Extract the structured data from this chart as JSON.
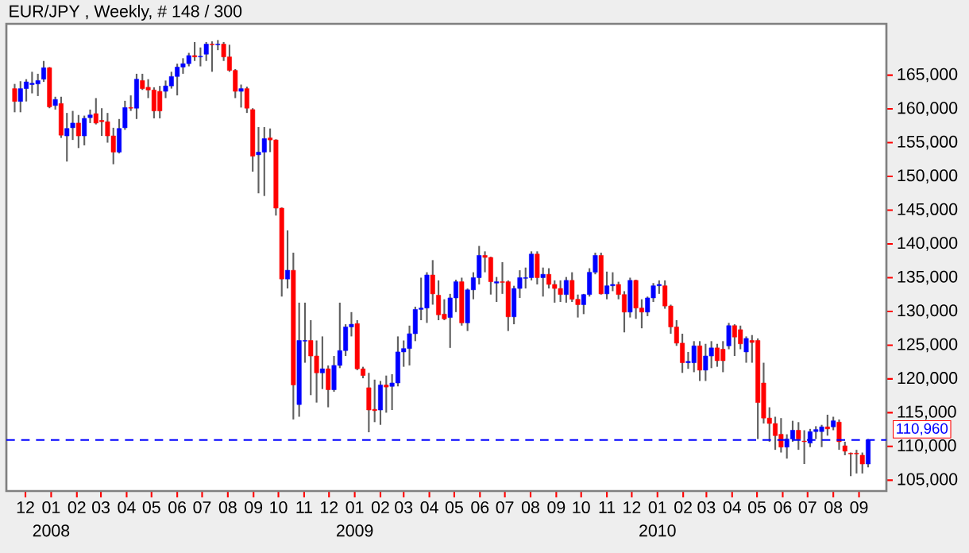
{
  "chart_data": {
    "type": "candlestick",
    "title": "EUR/JPY , Weekly, # 148 / 300",
    "colors": [
      "#ff0000",
      "#0000ff",
      "#0000ff",
      "#0000ff",
      "#0000ff",
      "#0000ff",
      "#ff0000",
      "#0000ff",
      "#ff0000",
      "#0000ff",
      "#0000ff",
      "#ff0000",
      "#0000ff",
      "#0000ff",
      "#ff0000",
      "#ff0000",
      "#ff0000",
      "#ff0000",
      "#0000ff",
      "#0000ff",
      "#ff0000",
      "#0000ff",
      "#ff0000",
      "#ff0000",
      "#ff0000",
      "#ff0000",
      "#0000ff",
      "#0000ff",
      "#0000ff",
      "#0000ff",
      "#0000ff",
      "#ff0000",
      "#0000ff",
      "#0000ff",
      "#ff0000",
      "#0000ff",
      "#ff0000",
      "#ff0000",
      "#ff0000",
      "#0000ff",
      "#ff0000",
      "#ff0000",
      "#0000ff",
      "#0000ff",
      "#ff0000",
      "#ff0000",
      "#ff0000",
      "#0000ff",
      "#ff0000",
      "#0000ff",
      "#0000ff",
      "#ff0000",
      "#ff0000",
      "#0000ff",
      "#ff0000",
      "#0000ff",
      "#0000ff",
      "#0000ff",
      "#0000ff",
      "#ff0000",
      "#ff0000",
      "#ff0000",
      "#ff0000",
      "#0000ff",
      "#ff0000",
      "#0000ff",
      "#0000ff",
      "#0000ff",
      "#0000ff",
      "#0000ff",
      "#0000ff",
      "#0000ff",
      "#ff0000",
      "#ff0000",
      "#ff0000",
      "#0000ff",
      "#0000ff",
      "#ff0000",
      "#0000ff",
      "#0000ff",
      "#0000ff",
      "#ff0000",
      "#ff0000",
      "#0000ff",
      "#ff0000",
      "#ff0000",
      "#0000ff",
      "#0000ff",
      "#0000ff",
      "#0000ff",
      "#ff0000",
      "#0000ff",
      "#ff0000",
      "#ff0000",
      "#ff0000",
      "#0000ff",
      "#ff0000",
      "#ff0000",
      "#0000ff",
      "#0000ff",
      "#0000ff",
      "#ff0000",
      "#0000ff",
      "#0000ff",
      "#ff0000",
      "#ff0000",
      "#0000ff",
      "#ff0000",
      "#ff0000",
      "#0000ff",
      "#0000ff",
      "#0000ff",
      "#ff0000",
      "#ff0000",
      "#ff0000",
      "#ff0000",
      "#0000ff",
      "#0000ff",
      "#ff0000",
      "#0000ff",
      "#0000ff",
      "#ff0000",
      "#ff0000",
      "#0000ff",
      "#ff0000",
      "#ff0000",
      "#0000ff",
      "#ff0000",
      "#ff0000",
      "#ff0000",
      "#ff0000",
      "#ff0000",
      "#ff0000",
      "#0000ff",
      "#0000ff",
      "#ff0000",
      "#ff0000",
      "#0000ff",
      "#0000ff",
      "#0000ff",
      "#ff0000",
      "#0000ff",
      "#ff0000",
      "#ff0000",
      "#ff0000",
      "#ff0000",
      "#ff0000",
      "#0000ff"
    ],
    "x": [
      "2007-11-18",
      "2007-11-25",
      "2007-12-02",
      "2007-12-09",
      "2007-12-16",
      "2007-12-23",
      "2007-12-30",
      "2008-01-06",
      "2008-01-13",
      "2008-01-20",
      "2008-01-27",
      "2008-02-03",
      "2008-02-10",
      "2008-02-17",
      "2008-02-24",
      "2008-03-02",
      "2008-03-09",
      "2008-03-16",
      "2008-03-23",
      "2008-03-30",
      "2008-04-06",
      "2008-04-13",
      "2008-04-20",
      "2008-04-27",
      "2008-05-04",
      "2008-05-11",
      "2008-05-18",
      "2008-05-25",
      "2008-06-01",
      "2008-06-08",
      "2008-06-15",
      "2008-06-22",
      "2008-06-29",
      "2008-07-06",
      "2008-07-13",
      "2008-07-20",
      "2008-07-27",
      "2008-08-03",
      "2008-08-10",
      "2008-08-17",
      "2008-08-24",
      "2008-08-31",
      "2008-09-07",
      "2008-09-14",
      "2008-09-21",
      "2008-09-28",
      "2008-10-05",
      "2008-10-12",
      "2008-10-19",
      "2008-10-26",
      "2008-11-02",
      "2008-11-09",
      "2008-11-16",
      "2008-11-23",
      "2008-11-30",
      "2008-12-07",
      "2008-12-14",
      "2008-12-21",
      "2008-12-28",
      "2009-01-04",
      "2009-01-11",
      "2009-01-18",
      "2009-01-25",
      "2009-02-01",
      "2009-02-08",
      "2009-02-15",
      "2009-02-22",
      "2009-03-01",
      "2009-03-08",
      "2009-03-15",
      "2009-03-22",
      "2009-03-29",
      "2009-04-05",
      "2009-04-12",
      "2009-04-19",
      "2009-04-26",
      "2009-05-03",
      "2009-05-10",
      "2009-05-17",
      "2009-05-24",
      "2009-05-31",
      "2009-06-07",
      "2009-06-14",
      "2009-06-21",
      "2009-06-28",
      "2009-07-05",
      "2009-07-12",
      "2009-07-19",
      "2009-07-26",
      "2009-08-02",
      "2009-08-09",
      "2009-08-16",
      "2009-08-23",
      "2009-08-30",
      "2009-09-06",
      "2009-09-13",
      "2009-09-20",
      "2009-09-27",
      "2009-10-04",
      "2009-10-11",
      "2009-10-18",
      "2009-10-25",
      "2009-11-01",
      "2009-11-08",
      "2009-11-15",
      "2009-11-22",
      "2009-11-29",
      "2009-12-06",
      "2009-12-13",
      "2009-12-20",
      "2009-12-27",
      "2010-01-03",
      "2010-01-10",
      "2010-01-17",
      "2010-01-24",
      "2010-01-31",
      "2010-02-07",
      "2010-02-14",
      "2010-02-21",
      "2010-02-28",
      "2010-03-07",
      "2010-03-14",
      "2010-03-21",
      "2010-03-28",
      "2010-04-04",
      "2010-04-11",
      "2010-04-18",
      "2010-04-25",
      "2010-05-02",
      "2010-05-09",
      "2010-05-16",
      "2010-05-23",
      "2010-05-30",
      "2010-06-06",
      "2010-06-13",
      "2010-06-20",
      "2010-06-27",
      "2010-07-04",
      "2010-07-11",
      "2010-07-18",
      "2010-07-25",
      "2010-08-01",
      "2010-08-08",
      "2010-08-15",
      "2010-08-22",
      "2010-08-29",
      "2010-09-05",
      "2010-09-12"
    ],
    "ohlc": [
      [
        163000,
        163700,
        159500,
        161100
      ],
      [
        161100,
        164100,
        159500,
        163000
      ],
      [
        163000,
        164400,
        161100,
        164000
      ],
      [
        163600,
        165500,
        162300,
        163800
      ],
      [
        163700,
        165200,
        161900,
        164200
      ],
      [
        164400,
        167100,
        164000,
        166100
      ],
      [
        166100,
        166200,
        160100,
        160300
      ],
      [
        160500,
        161800,
        159900,
        161400
      ],
      [
        160800,
        161800,
        155700,
        156100
      ],
      [
        156000,
        159400,
        152200,
        157100
      ],
      [
        157200,
        159700,
        155400,
        157900
      ],
      [
        157900,
        159100,
        154200,
        156000
      ],
      [
        156000,
        159000,
        154600,
        158600
      ],
      [
        158700,
        159900,
        157900,
        159100
      ],
      [
        159300,
        161600,
        157700,
        157900
      ],
      [
        158300,
        160100,
        156000,
        158100
      ],
      [
        158100,
        159400,
        155000,
        156000
      ],
      [
        156000,
        157200,
        151800,
        153600
      ],
      [
        153600,
        158500,
        153400,
        157100
      ],
      [
        157200,
        161200,
        156900,
        160200
      ],
      [
        160200,
        162000,
        159700,
        160100
      ],
      [
        160100,
        165200,
        158500,
        164400
      ],
      [
        164200,
        165200,
        162800,
        163000
      ],
      [
        163200,
        164400,
        161600,
        162800
      ],
      [
        162800,
        163200,
        158600,
        159700
      ],
      [
        162600,
        163400,
        158600,
        159700
      ],
      [
        162600,
        164200,
        161600,
        163400
      ],
      [
        163400,
        165500,
        163000,
        164800
      ],
      [
        164800,
        166700,
        162000,
        166200
      ],
      [
        166200,
        167500,
        165200,
        166700
      ],
      [
        166700,
        168300,
        166300,
        167900
      ],
      [
        167900,
        169900,
        167100,
        167700
      ],
      [
        167700,
        169100,
        166300,
        167800
      ],
      [
        168100,
        169900,
        167100,
        169600
      ],
      [
        169600,
        170000,
        165500,
        169500
      ],
      [
        169500,
        170200,
        168700,
        169600
      ],
      [
        169600,
        169900,
        167100,
        167700
      ],
      [
        167700,
        169500,
        165500,
        165700
      ],
      [
        165700,
        165900,
        161600,
        162600
      ],
      [
        162600,
        163600,
        160200,
        163000
      ],
      [
        163000,
        163300,
        159400,
        160100
      ],
      [
        159900,
        160100,
        150700,
        153000
      ],
      [
        153200,
        157300,
        147500,
        153600
      ],
      [
        153600,
        157300,
        147100,
        155600
      ],
      [
        155700,
        157100,
        153600,
        155400
      ],
      [
        155400,
        155500,
        144200,
        145300
      ],
      [
        145300,
        145400,
        132200,
        134800
      ],
      [
        134800,
        142000,
        133400,
        136100
      ],
      [
        136100,
        138700,
        114000,
        119100
      ],
      [
        116200,
        131300,
        114400,
        125700
      ],
      [
        125600,
        131300,
        122400,
        125700
      ],
      [
        125700,
        128700,
        117600,
        123400
      ],
      [
        123400,
        125700,
        116500,
        120900
      ],
      [
        120900,
        126300,
        118500,
        121500
      ],
      [
        121500,
        122000,
        115800,
        118400
      ],
      [
        118400,
        123400,
        118100,
        122000
      ],
      [
        122000,
        131300,
        121600,
        124200
      ],
      [
        124200,
        128100,
        123400,
        127700
      ],
      [
        127700,
        129900,
        126300,
        128100
      ],
      [
        128200,
        128700,
        121300,
        121500
      ],
      [
        121500,
        121800,
        120100,
        120500
      ],
      [
        118700,
        120900,
        112100,
        115400
      ],
      [
        115500,
        119900,
        113600,
        115300
      ],
      [
        115400,
        119700,
        113200,
        119100
      ],
      [
        119100,
        120500,
        115000,
        118800
      ],
      [
        118900,
        120700,
        115400,
        119400
      ],
      [
        119400,
        126300,
        118900,
        124000
      ],
      [
        124000,
        125700,
        121800,
        124500
      ],
      [
        124500,
        127900,
        122000,
        126700
      ],
      [
        126700,
        130700,
        125600,
        130300
      ],
      [
        130300,
        135000,
        128700,
        130500
      ],
      [
        130500,
        135800,
        128300,
        135400
      ],
      [
        135400,
        137600,
        131000,
        132600
      ],
      [
        132400,
        134600,
        128700,
        129500
      ],
      [
        129600,
        131800,
        128700,
        128900
      ],
      [
        129100,
        132600,
        124600,
        132000
      ],
      [
        132000,
        134700,
        129900,
        134400
      ],
      [
        134400,
        135000,
        127900,
        128300
      ],
      [
        128300,
        133400,
        127100,
        133200
      ],
      [
        133200,
        135800,
        131800,
        135000
      ],
      [
        135000,
        139700,
        134000,
        138300
      ],
      [
        138300,
        138900,
        135800,
        138000
      ],
      [
        138000,
        138100,
        132500,
        134400
      ],
      [
        134200,
        135100,
        131400,
        134400
      ],
      [
        134400,
        137300,
        132600,
        134300
      ],
      [
        134400,
        134600,
        127100,
        129200
      ],
      [
        129200,
        133800,
        128100,
        133400
      ],
      [
        133400,
        136100,
        132000,
        135000
      ],
      [
        134900,
        136500,
        133400,
        135000
      ],
      [
        135000,
        138900,
        134600,
        138500
      ],
      [
        138500,
        138900,
        134000,
        135000
      ],
      [
        135000,
        136500,
        132200,
        135500
      ],
      [
        135500,
        136400,
        133400,
        134000
      ],
      [
        134000,
        134600,
        131300,
        133400
      ],
      [
        133400,
        134600,
        131400,
        132500
      ],
      [
        132500,
        135100,
        131300,
        134600
      ],
      [
        134600,
        135800,
        131400,
        131800
      ],
      [
        131800,
        132500,
        129100,
        131000
      ],
      [
        131000,
        132600,
        129600,
        132500
      ],
      [
        132500,
        136400,
        132200,
        135800
      ],
      [
        135800,
        138700,
        135500,
        138300
      ],
      [
        138300,
        138700,
        132500,
        132600
      ],
      [
        132600,
        135900,
        131800,
        133800
      ],
      [
        133800,
        135800,
        133000,
        134000
      ],
      [
        134000,
        134400,
        131800,
        132500
      ],
      [
        132500,
        133000,
        126900,
        129900
      ],
      [
        129900,
        135000,
        129100,
        134600
      ],
      [
        134600,
        134700,
        128900,
        130500
      ],
      [
        130500,
        131800,
        127500,
        129900
      ],
      [
        129900,
        132200,
        129300,
        132000
      ],
      [
        132000,
        134200,
        131400,
        133800
      ],
      [
        133800,
        134600,
        132600,
        134000
      ],
      [
        133800,
        134600,
        130400,
        130800
      ],
      [
        130800,
        131000,
        126700,
        127700
      ],
      [
        127700,
        128700,
        124900,
        125300
      ],
      [
        125300,
        126700,
        120900,
        122400
      ],
      [
        122400,
        124000,
        121500,
        122600
      ],
      [
        122400,
        125600,
        121000,
        124900
      ],
      [
        124900,
        125600,
        119700,
        121300
      ],
      [
        121300,
        125200,
        119700,
        123400
      ],
      [
        123400,
        125600,
        121600,
        124600
      ],
      [
        124600,
        125200,
        121800,
        122700
      ],
      [
        124400,
        125600,
        121000,
        122700
      ],
      [
        124900,
        128300,
        124400,
        127900
      ],
      [
        127900,
        128100,
        123400,
        126200
      ],
      [
        127300,
        127900,
        124400,
        125200
      ],
      [
        124000,
        126300,
        122400,
        126000
      ],
      [
        125700,
        126500,
        122400,
        125400
      ],
      [
        125700,
        126000,
        111100,
        116500
      ],
      [
        119400,
        122400,
        113400,
        114200
      ],
      [
        114200,
        115800,
        110700,
        113400
      ],
      [
        113400,
        114400,
        109500,
        111600
      ],
      [
        111800,
        114200,
        109100,
        109900
      ],
      [
        109900,
        111800,
        108200,
        111100
      ],
      [
        111100,
        113800,
        110700,
        112400
      ],
      [
        112400,
        113600,
        109500,
        111100
      ],
      [
        110800,
        112400,
        107400,
        110700
      ],
      [
        110500,
        112600,
        109900,
        112200
      ],
      [
        112200,
        113000,
        111100,
        112500
      ],
      [
        112200,
        113200,
        109900,
        112900
      ],
      [
        112900,
        114700,
        111600,
        112600
      ],
      [
        112900,
        114400,
        112400,
        113800
      ],
      [
        113600,
        114000,
        109500,
        110700
      ],
      [
        110100,
        110700,
        108700,
        109300
      ],
      [
        109000,
        109100,
        105600,
        108900
      ],
      [
        109000,
        109500,
        106000,
        108900
      ],
      [
        108700,
        109100,
        106000,
        107400
      ],
      [
        107400,
        111100,
        106900,
        110960
      ]
    ],
    "xlim": [
      "2007-11-08",
      "2010-10-04"
    ],
    "xticks": [
      {
        "value": "2007-12-01",
        "label": "12"
      },
      {
        "value": "2008-01-01",
        "label": "01"
      },
      {
        "value": "2008-02-01",
        "label": "02"
      },
      {
        "value": "2008-03-01",
        "label": "03"
      },
      {
        "value": "2008-04-01",
        "label": "04"
      },
      {
        "value": "2008-05-01",
        "label": "05"
      },
      {
        "value": "2008-06-01",
        "label": "06"
      },
      {
        "value": "2008-07-01",
        "label": "07"
      },
      {
        "value": "2008-08-01",
        "label": "08"
      },
      {
        "value": "2008-09-01",
        "label": "09"
      },
      {
        "value": "2008-10-01",
        "label": "10"
      },
      {
        "value": "2008-11-01",
        "label": "11"
      },
      {
        "value": "2008-12-01",
        "label": "12"
      },
      {
        "value": "2009-01-01",
        "label": "01"
      },
      {
        "value": "2009-02-01",
        "label": "02"
      },
      {
        "value": "2009-03-01",
        "label": "03"
      },
      {
        "value": "2009-04-01",
        "label": "04"
      },
      {
        "value": "2009-05-01",
        "label": "05"
      },
      {
        "value": "2009-06-01",
        "label": "06"
      },
      {
        "value": "2009-07-01",
        "label": "07"
      },
      {
        "value": "2009-08-01",
        "label": "08"
      },
      {
        "value": "2009-09-01",
        "label": "09"
      },
      {
        "value": "2009-10-01",
        "label": "10"
      },
      {
        "value": "2009-11-01",
        "label": "11"
      },
      {
        "value": "2009-12-01",
        "label": "12"
      },
      {
        "value": "2010-01-01",
        "label": "01"
      },
      {
        "value": "2010-02-01",
        "label": "02"
      },
      {
        "value": "2010-03-01",
        "label": "03"
      },
      {
        "value": "2010-04-01",
        "label": "04"
      },
      {
        "value": "2010-05-01",
        "label": "05"
      },
      {
        "value": "2010-06-01",
        "label": "06"
      },
      {
        "value": "2010-07-01",
        "label": "07"
      },
      {
        "value": "2010-08-01",
        "label": "08"
      },
      {
        "value": "2010-09-01",
        "label": "09"
      }
    ],
    "ylim": [
      103400,
      172600
    ],
    "yticks": [
      {
        "value": 105000,
        "label": "105,000"
      },
      {
        "value": 110000,
        "label": "110,000"
      },
      {
        "value": 115000,
        "label": "115,000"
      },
      {
        "value": 120000,
        "label": "120,000"
      },
      {
        "value": 125000,
        "label": "125,000"
      },
      {
        "value": 130000,
        "label": "130,000"
      },
      {
        "value": 135000,
        "label": "135,000"
      },
      {
        "value": 140000,
        "label": "140,000"
      },
      {
        "value": 145000,
        "label": "145,000"
      },
      {
        "value": 150000,
        "label": "150,000"
      },
      {
        "value": 155000,
        "label": "155,000"
      },
      {
        "value": 160000,
        "label": "160,000"
      },
      {
        "value": 165000,
        "label": "165,000"
      }
    ],
    "ref_lines": [
      {
        "axis": "y",
        "value": 110960,
        "label": "110,960",
        "color": "#0000ff",
        "line_style": "dashed"
      }
    ],
    "annotations": [
      "2008",
      "2009",
      "2010"
    ]
  }
}
